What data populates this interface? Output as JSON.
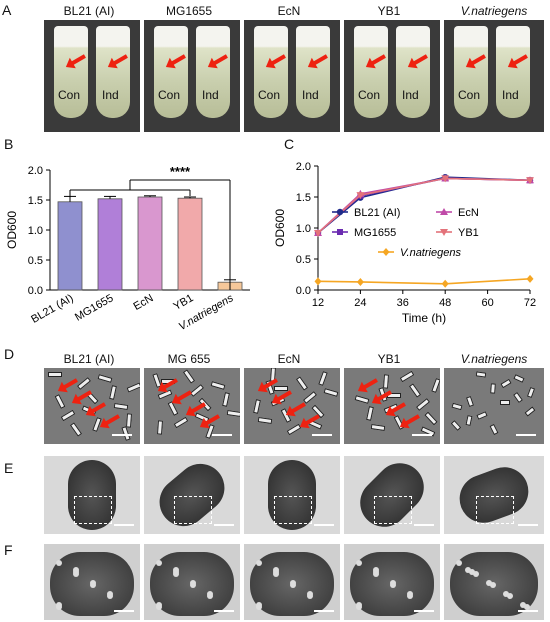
{
  "panels": {
    "a": "A",
    "b": "B",
    "c": "C",
    "d": "D",
    "e": "E",
    "f": "F"
  },
  "panelA": {
    "strains": [
      "BL21 (AI)",
      "MG1655",
      "EcN",
      "YB1",
      "V.natriegens"
    ],
    "tube_labels": {
      "left": "Con",
      "right": "Ind"
    }
  },
  "chart_data": [
    {
      "type": "bar",
      "categories": [
        "BL21 (AI)",
        "MG1655",
        "EcN",
        "YB1",
        "V.natriegens"
      ],
      "values": [
        1.47,
        1.52,
        1.55,
        1.53,
        0.13
      ],
      "errors": [
        0.09,
        0.04,
        0.02,
        0.02,
        0.04
      ],
      "colors": [
        "#8f90cf",
        "#b07fd8",
        "#d997cf",
        "#f1a9aa",
        "#f6c89a"
      ],
      "ylabel": "OD600",
      "ylim": [
        0,
        2.0
      ],
      "yticks": [
        "0.0",
        "0.5",
        "1.0",
        "1.5",
        "2.0"
      ],
      "significance": "****"
    },
    {
      "type": "line",
      "x": [
        12,
        24,
        48,
        72
      ],
      "xlabel": "Time (h)",
      "ylabel": "OD600",
      "ylim": [
        0,
        2.0
      ],
      "xticks": [
        "12",
        "24",
        "36",
        "48",
        "60",
        "72"
      ],
      "yticks": [
        "0.0",
        "0.5",
        "1.0",
        "1.5",
        "2.0"
      ],
      "series": [
        {
          "name": "BL21 (AI)",
          "values": [
            0.92,
            1.49,
            1.82,
            1.77
          ],
          "color": "#1f2a8a",
          "marker": "circle"
        },
        {
          "name": "MG1655",
          "values": [
            0.92,
            1.52,
            1.8,
            1.77
          ],
          "color": "#6a2bb0",
          "marker": "square"
        },
        {
          "name": "EcN",
          "values": [
            0.92,
            1.55,
            1.8,
            1.77
          ],
          "color": "#c04aa8",
          "marker": "triangle"
        },
        {
          "name": "YB1",
          "values": [
            0.92,
            1.53,
            1.8,
            1.77
          ],
          "color": "#e3727a",
          "marker": "triangle-down"
        },
        {
          "name": "V.natriegens",
          "values": [
            0.14,
            0.13,
            0.1,
            0.18
          ],
          "color": "#f5a623",
          "marker": "diamond"
        }
      ]
    }
  ],
  "panelD": {
    "strains": [
      "BL21 (AI)",
      "MG 655",
      "EcN",
      "YB1",
      "V.natriegens"
    ]
  },
  "colors": {
    "arrow": "#e21b1b"
  }
}
